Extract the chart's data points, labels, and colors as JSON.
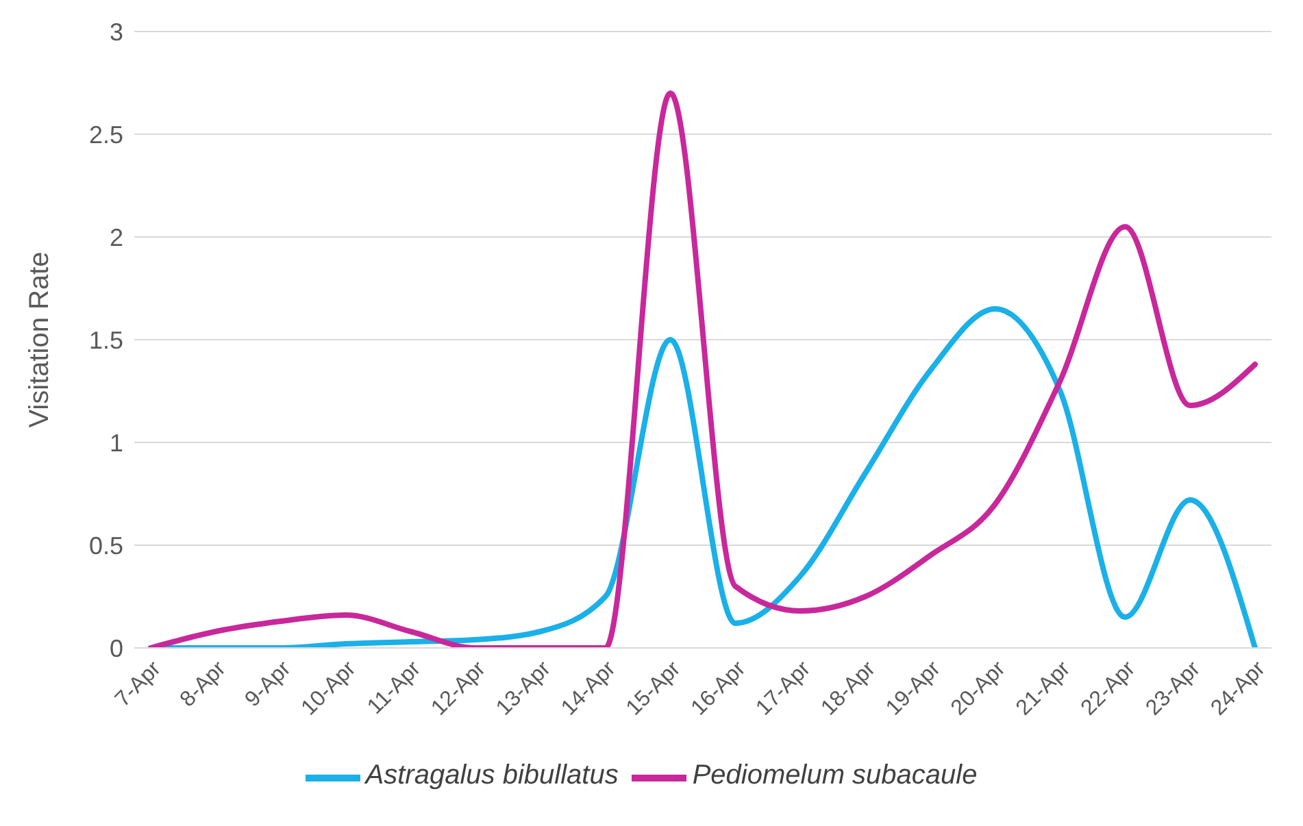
{
  "chart_data": {
    "type": "line",
    "ylabel": "Visitation Rate",
    "categories": [
      "7-Apr",
      "8-Apr",
      "9-Apr",
      "10-Apr",
      "11-Apr",
      "12-Apr",
      "13-Apr",
      "14-Apr",
      "15-Apr",
      "16-Apr",
      "17-Apr",
      "18-Apr",
      "19-Apr",
      "20-Apr",
      "21-Apr",
      "22-Apr",
      "23-Apr",
      "24-Apr"
    ],
    "series": [
      {
        "name": "Astragalus bibullatus",
        "color": "#1ab0e8",
        "values": [
          0,
          0,
          0,
          0.02,
          0.03,
          0.04,
          0.08,
          0.25,
          1.5,
          0.12,
          0.35,
          0.85,
          1.35,
          1.65,
          1.25,
          0.15,
          0.72,
          0
        ]
      },
      {
        "name": "Pediomelum subacaule",
        "color": "#c8289b",
        "values": [
          0,
          0.08,
          0.13,
          0.16,
          0.08,
          0,
          0,
          0,
          2.7,
          0.3,
          0.18,
          0.25,
          0.45,
          0.7,
          1.3,
          2.05,
          1.18,
          1.38
        ]
      }
    ],
    "ylim": [
      0,
      3
    ],
    "yticks": [
      0,
      0.5,
      1,
      1.5,
      2,
      2.5,
      3
    ],
    "grid": "y",
    "legend": "bottom",
    "marker": "none",
    "line_style": "solid"
  }
}
